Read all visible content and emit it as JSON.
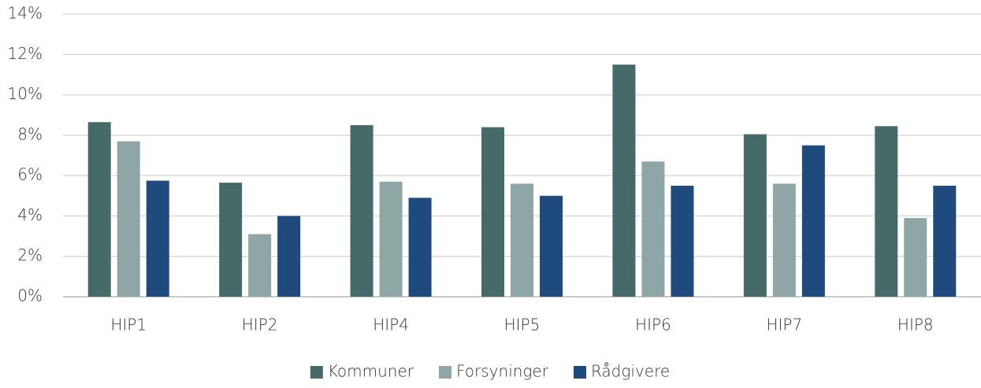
{
  "chart_data": {
    "type": "bar",
    "categories": [
      "HIP1",
      "HIP2",
      "HIP4",
      "HIP5",
      "HIP6",
      "HIP7",
      "HIP8"
    ],
    "series": [
      {
        "name": "Kommuner",
        "color": "#456a67",
        "values": [
          8.65,
          5.65,
          8.5,
          8.4,
          11.5,
          8.05,
          8.45
        ]
      },
      {
        "name": "Forsyninger",
        "color": "#8ea6a5",
        "values": [
          7.7,
          3.1,
          5.7,
          5.6,
          6.7,
          5.6,
          3.9
        ]
      },
      {
        "name": "Rådgivere",
        "color": "#1f4a7e",
        "values": [
          5.75,
          4.0,
          4.9,
          5.0,
          5.5,
          7.5,
          5.5
        ]
      }
    ],
    "ylim": [
      0,
      14
    ],
    "yticks": [
      {
        "value": 0,
        "label": "0%"
      },
      {
        "value": 2,
        "label": "2%"
      },
      {
        "value": 4,
        "label": "4%"
      },
      {
        "value": 6,
        "label": "6%"
      },
      {
        "value": 8,
        "label": "8%"
      },
      {
        "value": 10,
        "label": "10%"
      },
      {
        "value": 12,
        "label": "12%"
      },
      {
        "value": 14,
        "label": "14%"
      }
    ],
    "grid": true,
    "legend": "bottom"
  }
}
